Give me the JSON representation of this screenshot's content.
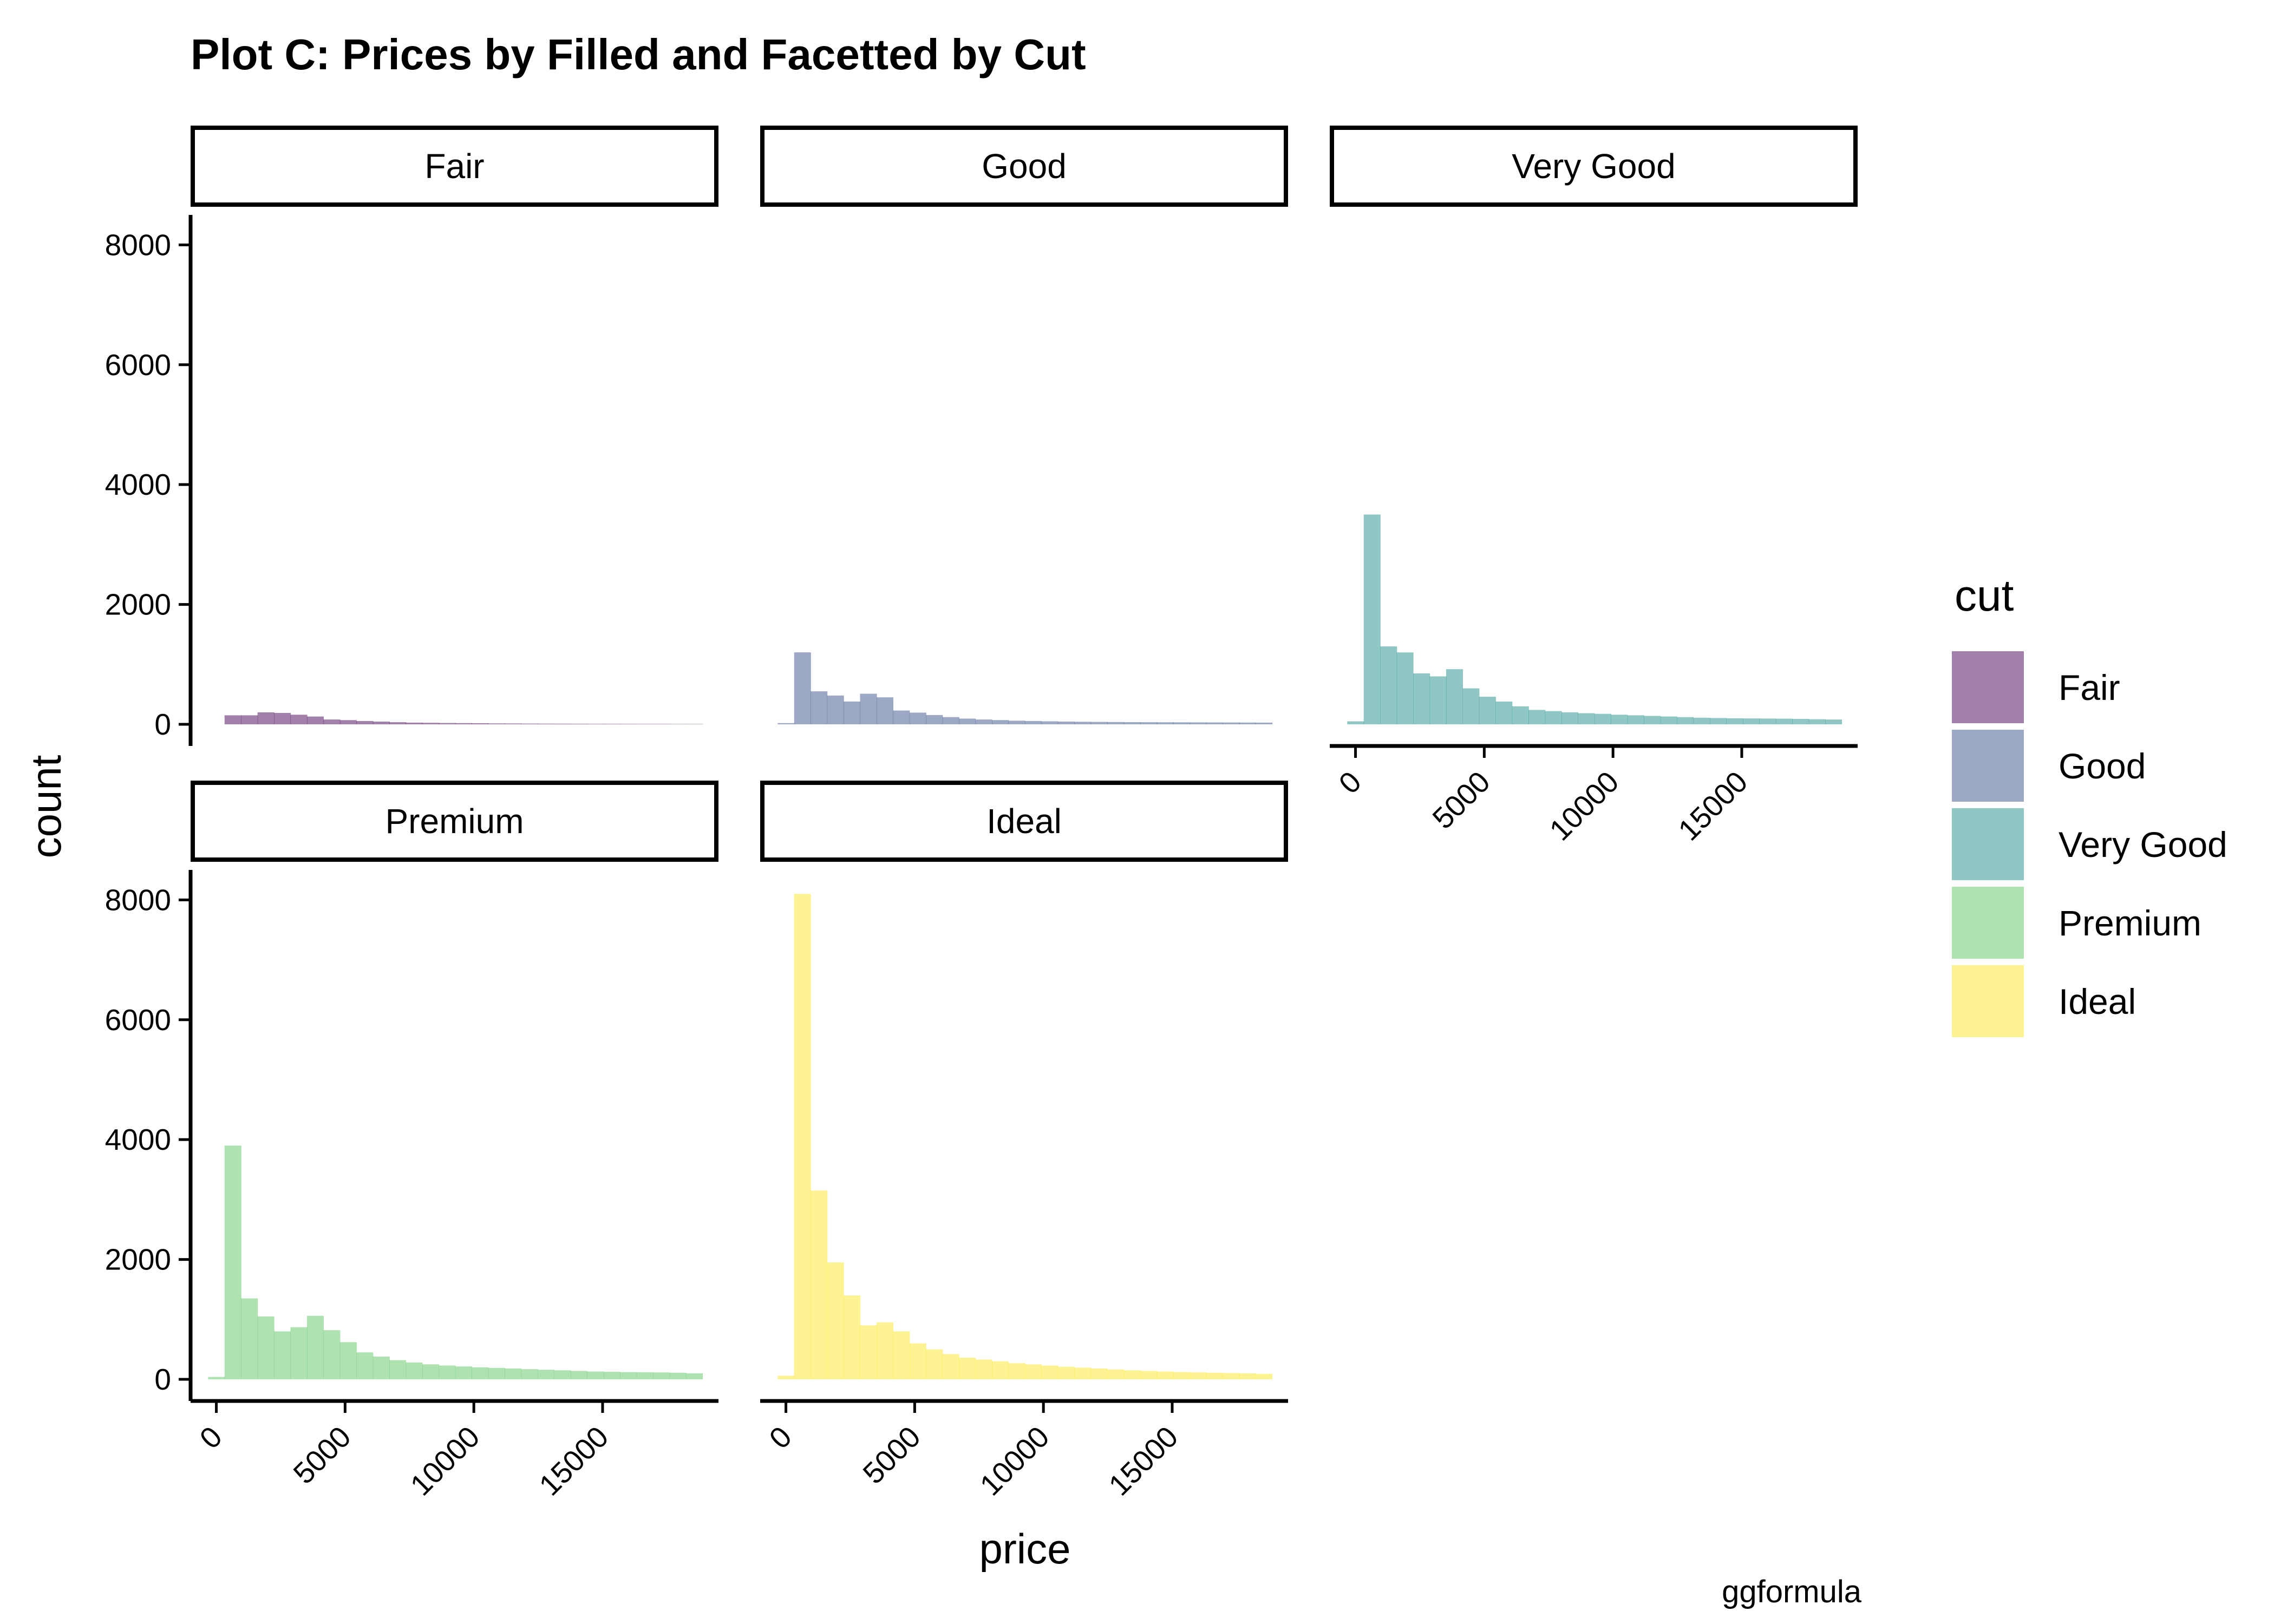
{
  "chart_data": {
    "type": "histogram",
    "title": "Plot C: Prices by Filled and Facetted by Cut",
    "xlabel": "price",
    "ylabel": "count",
    "caption": "ggformula",
    "facet_variable": "cut",
    "xlim": [
      -1000,
      19500
    ],
    "ylim": [
      0,
      8500
    ],
    "x_ticks": [
      0,
      5000,
      10000,
      15000
    ],
    "x_tick_labels": [
      "0",
      "5000",
      "10000",
      "15000"
    ],
    "y_ticks": [
      0,
      2000,
      4000,
      6000,
      8000
    ],
    "y_tick_labels": [
      "0",
      "2000",
      "4000",
      "6000",
      "8000"
    ],
    "bin_width": 640,
    "bin_start": -320,
    "grid": false,
    "legend": {
      "title": "cut",
      "position": "right",
      "entries": [
        {
          "label": "Fair",
          "color": "#440154"
        },
        {
          "label": "Good",
          "color": "#3b528b"
        },
        {
          "label": "Very Good",
          "color": "#21908c"
        },
        {
          "label": "Premium",
          "color": "#5dc863"
        },
        {
          "label": "Ideal",
          "color": "#fde725"
        }
      ]
    },
    "series": [
      {
        "name": "Fair",
        "color": "#440154",
        "values": [
          0,
          150,
          150,
          200,
          190,
          160,
          130,
          80,
          70,
          55,
          45,
          35,
          28,
          25,
          22,
          20,
          18,
          15,
          14,
          12,
          11,
          10,
          9,
          8,
          8,
          7,
          6,
          6,
          5,
          5
        ]
      },
      {
        "name": "Good",
        "color": "#3b528b",
        "values": [
          20,
          1200,
          550,
          480,
          380,
          510,
          450,
          230,
          195,
          155,
          120,
          95,
          80,
          70,
          60,
          55,
          50,
          45,
          42,
          40,
          38,
          36,
          35,
          34,
          33,
          32,
          31,
          30,
          29,
          28
        ]
      },
      {
        "name": "Very Good",
        "color": "#21908c",
        "values": [
          50,
          3500,
          1300,
          1200,
          850,
          800,
          920,
          600,
          460,
          380,
          300,
          240,
          220,
          200,
          185,
          175,
          160,
          150,
          140,
          130,
          120,
          110,
          105,
          100,
          98,
          96,
          94,
          90,
          85,
          80
        ]
      },
      {
        "name": "Premium",
        "color": "#5dc863",
        "values": [
          40,
          3900,
          1350,
          1050,
          800,
          870,
          1060,
          820,
          620,
          450,
          380,
          320,
          280,
          250,
          230,
          215,
          200,
          190,
          180,
          170,
          160,
          150,
          140,
          130,
          125,
          120,
          118,
          115,
          110,
          100
        ]
      },
      {
        "name": "Ideal",
        "color": "#fde725",
        "values": [
          60,
          8100,
          3150,
          1950,
          1400,
          900,
          950,
          800,
          600,
          500,
          420,
          360,
          330,
          300,
          270,
          250,
          230,
          210,
          195,
          180,
          165,
          150,
          140,
          130,
          120,
          115,
          110,
          105,
          100,
          90
        ]
      }
    ]
  }
}
